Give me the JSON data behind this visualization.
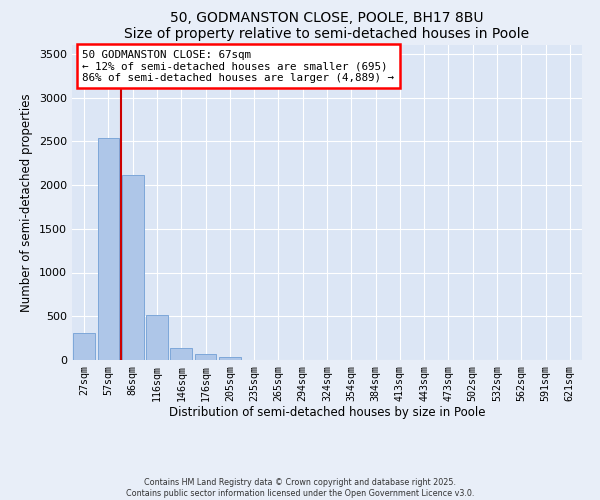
{
  "title": "50, GODMANSTON CLOSE, POOLE, BH17 8BU",
  "subtitle": "Size of property relative to semi-detached houses in Poole",
  "xlabel": "Distribution of semi-detached houses by size in Poole",
  "ylabel": "Number of semi-detached properties",
  "bin_labels": [
    "27sqm",
    "57sqm",
    "86sqm",
    "116sqm",
    "146sqm",
    "176sqm",
    "205sqm",
    "235sqm",
    "265sqm",
    "294sqm",
    "324sqm",
    "354sqm",
    "384sqm",
    "413sqm",
    "443sqm",
    "473sqm",
    "502sqm",
    "532sqm",
    "562sqm",
    "591sqm",
    "621sqm"
  ],
  "bar_values": [
    310,
    2540,
    2120,
    510,
    140,
    70,
    40,
    0,
    0,
    0,
    0,
    0,
    0,
    0,
    0,
    0,
    0,
    0,
    0,
    0,
    0
  ],
  "bar_color": "#aec6e8",
  "bar_edgecolor": "#7da7d9",
  "vline_color": "#cc0000",
  "annotation_title": "50 GODMANSTON CLOSE: 67sqm",
  "annotation_line1": "← 12% of semi-detached houses are smaller (695)",
  "annotation_line2": "86% of semi-detached houses are larger (4,889) →",
  "annotation_box_color": "red",
  "ylim": [
    0,
    3600
  ],
  "yticks": [
    0,
    500,
    1000,
    1500,
    2000,
    2500,
    3000,
    3500
  ],
  "footer1": "Contains HM Land Registry data © Crown copyright and database right 2025.",
  "footer2": "Contains public sector information licensed under the Open Government Licence v3.0.",
  "bg_color": "#e8eef8",
  "plot_bg_color": "#dce6f5",
  "grid_color": "#ffffff"
}
